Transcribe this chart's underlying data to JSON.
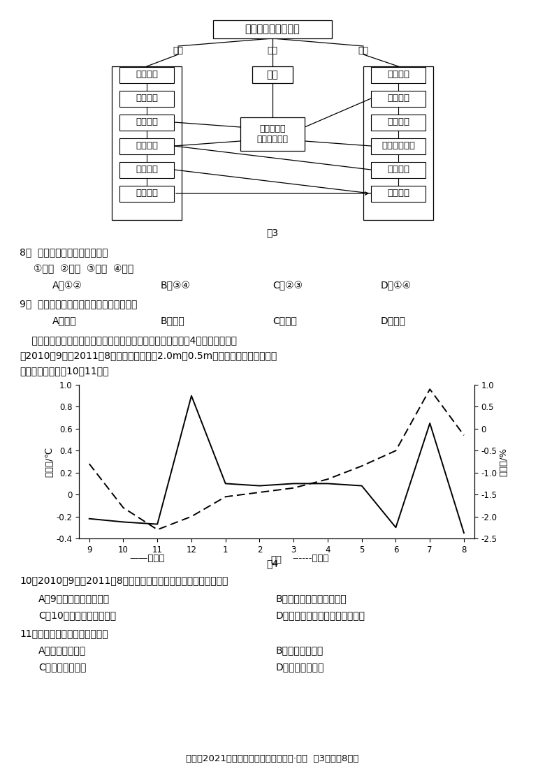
{
  "bg_color": "#ffffff",
  "diagram_title": "专业村镇形成与发展",
  "label_jichu": "基础",
  "label_guanjian": "关键",
  "label_cujin": "促进",
  "key_box": "能人",
  "center_box_line1": "成长环境与",
  "center_box_line2": "发挥作用环境",
  "left_boxes": [
    "村域环境",
    "地形特征",
    "资源禀赋",
    "区位条件",
    "历史传统",
    "经济基础"
  ],
  "right_boxes": [
    "区域环境",
    "宏观环境",
    "市场需求",
    "县乡政府作用",
    "技术条件",
    "经济基础"
  ],
  "fig3_label": "图3",
  "q8_num": "8．",
  "q8_text": "专业村镇形成的基础条件是",
  "q8_sub": "①市场  ②地形  ③资源  ④技术",
  "q8_opts": [
    "A．①②",
    "B．③④",
    "C．②③",
    "D．①④"
  ],
  "q9_num": "9．",
  "q9_text": "皖南地区专业村镇的主导产业最可能是",
  "q9_opts": [
    "A．苹果",
    "B．茶叶",
    "C．水稻",
    "D．蔬菜"
  ],
  "intro_line1": "    对流层逆温是下冷上热的现象，逆湿就是下湿上干的现象。图4为塔克拉玛干沙",
  "intro_line2": "漠2010年9月～2011年8月流沙前缘近地面2.0m与0.5m高度之间的温度和湿度差",
  "intro_line3": "值曲线，读图完成10～11题。",
  "month_labels": [
    "9",
    "10",
    "11",
    "12",
    "1",
    "2",
    "3",
    "4",
    "5",
    "6",
    "7",
    "8"
  ],
  "temp_diff": [
    -0.22,
    -0.25,
    -0.27,
    0.9,
    0.1,
    0.08,
    0.1,
    0.1,
    0.08,
    -0.3,
    0.65,
    -0.35
  ],
  "humid_diff": [
    -0.8,
    -1.8,
    -2.3,
    -2.0,
    -1.55,
    -1.45,
    -1.35,
    -1.15,
    -0.85,
    -0.5,
    0.9,
    -0.15
  ],
  "left_ylabel": "温度差/℃",
  "right_ylabel": "湿度差/%",
  "xlabel": "月份",
  "left_ylim": [
    -0.4,
    1.0
  ],
  "right_ylim": [
    -2.5,
    1.0
  ],
  "left_yticks": [
    -0.4,
    -0.2,
    0.0,
    0.2,
    0.4,
    0.6,
    0.8,
    1.0
  ],
  "right_yticks": [
    -2.5,
    -2.0,
    -1.5,
    -1.0,
    -0.5,
    0.0,
    0.5,
    1.0
  ],
  "fig4_label": "图4",
  "q10_num": "10．",
  "q10_text": "2010年9月～2011年8月，有关当地逆温逆湿现象说法正确的是",
  "q10_optA": "A．9月开始出现逆温现象",
  "q10_optB": "B．逆温强度冬季大于夏季",
  "q10_optC": "C．10月开始出现逆湿现象",
  "q10_optD": "D．逆湿现象夏季比冬季更加明显",
  "q11_num": "11．",
  "q11_text": "流沙前缘的逆温逆湿现象会",
  "q11_optA": "A．促进植物生长",
  "q11_optB": "B．加速流沙扩展",
  "q11_optC": "C．增加区域降水",
  "q11_optD": "D．加剧风力侵蚀",
  "footer": "永州市2021年高考第二次模拟考试试卷·地理  第3页（共8页）"
}
